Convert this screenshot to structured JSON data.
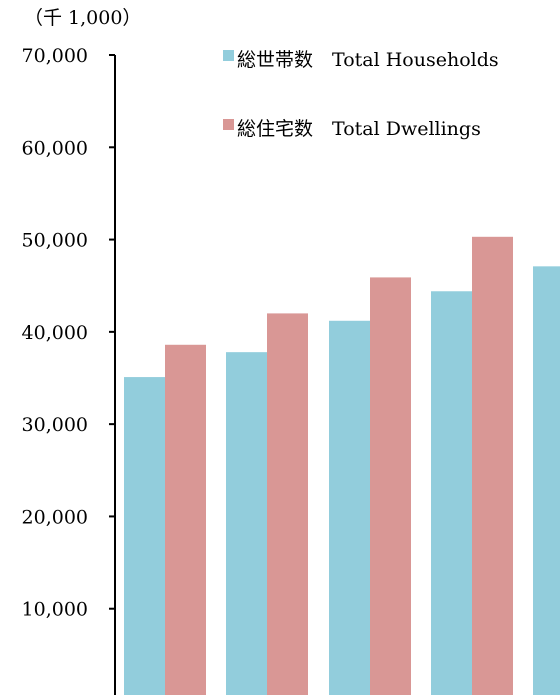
{
  "chart_data": {
    "type": "bar",
    "unit_label": "（千 1,000）",
    "ylim": [
      0,
      70000
    ],
    "yticks": [
      "10,000",
      "20,000",
      "30,000",
      "40,000",
      "50,000",
      "60,000",
      "70,000"
    ],
    "ytick_values": [
      10000,
      20000,
      30000,
      40000,
      50000,
      60000,
      70000
    ],
    "categories": [
      "",
      "",
      "",
      "",
      ""
    ],
    "series": [
      {
        "name": "総世帯数　Total Households",
        "color": "#92cddc",
        "values": [
          35100,
          37800,
          41200,
          44400,
          47100
        ]
      },
      {
        "name": "総住宅数　Total Dwellings",
        "color": "#d99795",
        "values": [
          38600,
          42000,
          45900,
          50300,
          null
        ]
      }
    ],
    "grid": false,
    "legend_position": "top"
  }
}
